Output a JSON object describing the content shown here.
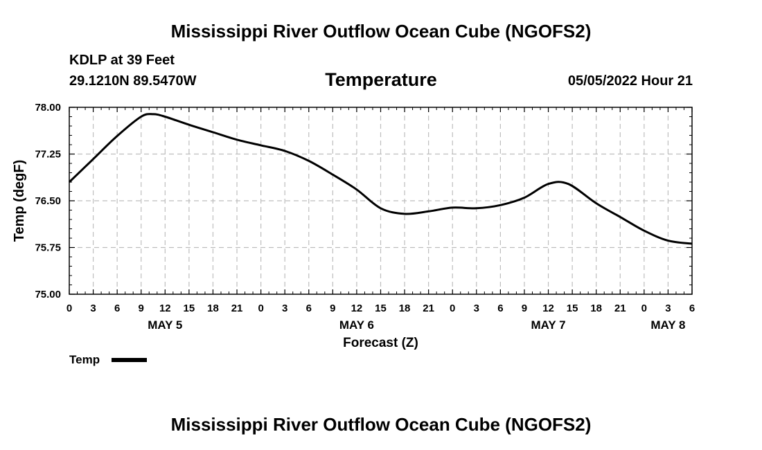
{
  "page": {
    "title_top": "Mississippi River Outflow Ocean Cube (NGOFS2)",
    "title_bottom": "Mississippi River Outflow Ocean Cube (NGOFS2)",
    "station": "KDLP at 39 Feet",
    "coords": "29.1210N  89.5470W",
    "datetime": "05/05/2022 Hour 21"
  },
  "chart_data": {
    "type": "line",
    "title": "Temperature",
    "xlabel": "Forecast (Z)",
    "ylabel": "Temp (degF)",
    "ylim": [
      75.0,
      78.0
    ],
    "xlim": [
      0,
      78
    ],
    "x_unit": "hours since 00Z May 5",
    "yticks": [
      75.0,
      75.75,
      76.5,
      77.25,
      78.0
    ],
    "ytick_labels": [
      "75.00",
      "75.75",
      "76.50",
      "77.25",
      "78.00"
    ],
    "xticks": [
      0,
      3,
      6,
      9,
      12,
      15,
      18,
      21,
      24,
      27,
      30,
      33,
      36,
      39,
      42,
      45,
      48,
      51,
      54,
      57,
      60,
      63,
      66,
      69,
      72,
      75,
      78
    ],
    "xtick_labels": [
      "0",
      "3",
      "6",
      "9",
      "12",
      "15",
      "18",
      "21",
      "0",
      "3",
      "6",
      "9",
      "12",
      "15",
      "18",
      "21",
      "0",
      "3",
      "6",
      "9",
      "12",
      "15",
      "18",
      "21",
      "0",
      "3",
      "6"
    ],
    "day_labels": [
      {
        "x": 12,
        "label": "MAY 5"
      },
      {
        "x": 36,
        "label": "MAY 6"
      },
      {
        "x": 60,
        "label": "MAY 7"
      },
      {
        "x": 75,
        "label": "MAY 8"
      }
    ],
    "grid": true,
    "legend": "bottom-left",
    "series": [
      {
        "name": "Temp",
        "color": "#000000",
        "x": [
          0,
          3,
          6,
          9,
          10.5,
          12,
          15,
          18,
          21,
          24,
          27,
          30,
          33,
          36,
          39,
          42,
          45,
          48,
          51,
          54,
          57,
          60,
          62.5,
          66,
          69,
          72,
          75,
          78
        ],
        "y": [
          76.8,
          77.17,
          77.54,
          77.85,
          77.89,
          77.85,
          77.72,
          77.6,
          77.48,
          77.39,
          77.3,
          77.14,
          76.92,
          76.68,
          76.38,
          76.29,
          76.33,
          76.39,
          76.38,
          76.43,
          76.55,
          76.77,
          76.77,
          76.46,
          76.24,
          76.02,
          75.86,
          75.81
        ]
      }
    ]
  }
}
